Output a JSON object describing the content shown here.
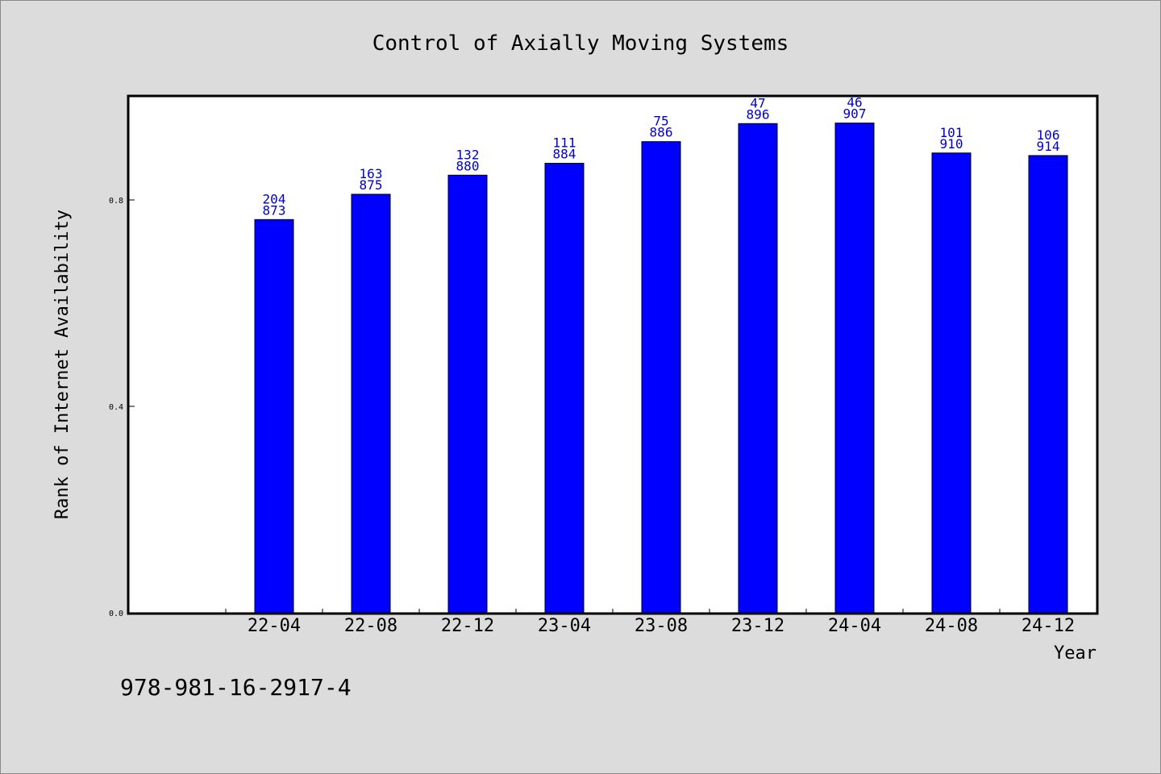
{
  "chart_data": {
    "type": "bar",
    "title": "Control of Axially Moving Systems",
    "xlabel": "Year",
    "ylabel": "Rank of Internet Availability",
    "categories": [
      "22-04",
      "22-08",
      "22-12",
      "23-04",
      "23-08",
      "23-12",
      "24-04",
      "24-08",
      "24-12"
    ],
    "values": [
      0.762,
      0.811,
      0.848,
      0.871,
      0.913,
      0.948,
      0.949,
      0.891,
      0.886
    ],
    "bar_labels_top": [
      "204",
      "163",
      "132",
      "111",
      "75",
      "47",
      "46",
      "101",
      "106"
    ],
    "bar_labels_bottom": [
      "873",
      "875",
      "880",
      "884",
      "886",
      "896",
      "907",
      "910",
      "914"
    ],
    "yticks": [
      "0.0",
      "0.4",
      "0.8"
    ],
    "ylim": [
      0,
      1.0
    ],
    "grid": false,
    "legend": "none"
  },
  "footer_text": "978-981-16-2917-4",
  "colors": {
    "background": "#dcdcdc",
    "plot_area": "#ffffff",
    "bar": "#0000ff",
    "bar_label": "#0000cc",
    "text": "#000000"
  }
}
